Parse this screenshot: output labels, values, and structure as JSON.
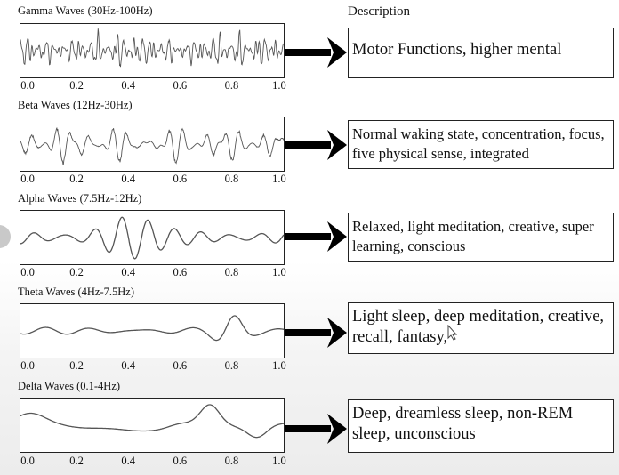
{
  "description_header": "Description",
  "tick_labels": [
    "0.0",
    "0.2",
    "0.4",
    "0.6",
    "0.8",
    "1.0"
  ],
  "arrow_icon": "right-arrow-icon",
  "cursor_icon": "mouse-pointer-icon",
  "rows": [
    {
      "title": "Gamma Waves (30Hz-100Hz)",
      "description": "Motor Functions, higher mental",
      "series": {
        "type": "line",
        "x_range": [
          0,
          1.0
        ],
        "freqs": [
          [
            30,
            0.25
          ],
          [
            41,
            0.22
          ],
          [
            52,
            0.18
          ],
          [
            67,
            0.15
          ],
          [
            80,
            0.1
          ],
          [
            95,
            0.08
          ]
        ],
        "amp_envelope": "noisy",
        "seed": 3
      }
    },
    {
      "title": "Beta Waves (12Hz-30Hz)",
      "description": "Normal waking state, concentration, focus, five physical sense, integrated",
      "series": {
        "type": "line",
        "x_range": [
          0,
          1.0
        ],
        "freqs": [
          [
            14,
            0.3
          ],
          [
            19,
            0.28
          ],
          [
            23,
            0.22
          ],
          [
            28,
            0.15
          ]
        ],
        "amp_envelope": "noisy",
        "seed": 7
      }
    },
    {
      "title": "Alpha Waves (7.5Hz-12Hz)",
      "description": "Relaxed, light meditation, creative, super learning, conscious",
      "series": {
        "type": "line",
        "x_range": [
          0,
          1.0
        ],
        "freqs": [
          [
            9.5,
            0.55
          ],
          [
            11,
            0.3
          ]
        ],
        "amp_envelope": "burst",
        "seed": 11
      }
    },
    {
      "title": "Theta Waves (4Hz-7.5Hz)",
      "description": "Light sleep, deep meditation, creative, recall, fantasy,",
      "series": {
        "type": "line",
        "x_range": [
          0,
          1.0
        ],
        "freqs": [
          [
            5.5,
            0.25
          ],
          [
            7,
            0.15
          ]
        ],
        "amp_envelope": "late-burst",
        "seed": 13
      }
    },
    {
      "title": "Delta Waves (0.1-4Hz)",
      "description": "Deep, dreamless sleep, non-REM sleep, unconscious",
      "series": {
        "type": "line",
        "x_range": [
          0,
          1.0
        ],
        "freqs": [
          [
            1.6,
            0.35
          ],
          [
            3.2,
            0.3
          ]
        ],
        "amp_envelope": "delta",
        "seed": 17
      }
    }
  ]
}
